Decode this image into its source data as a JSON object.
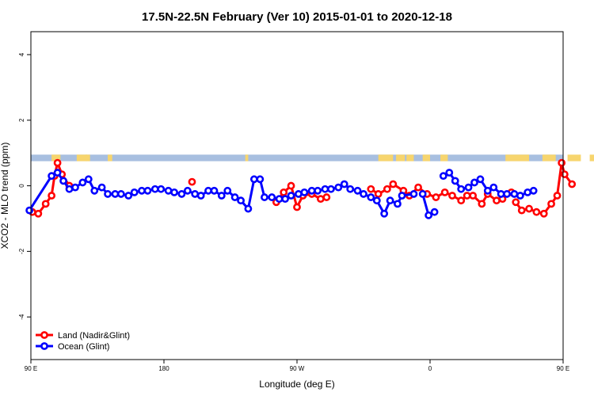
{
  "chart_data": {
    "type": "line",
    "title": "17.5N-22.5N February (Ver 10)   2015-01-01 to 2020-12-18",
    "xlabel": "Longitude (deg E)",
    "ylabel": "XCO2 - MLO trend (ppm)",
    "xlim": [
      90,
      450
    ],
    "ylim": [
      -5.3,
      4.7
    ],
    "x_ticks": [
      {
        "value": 90,
        "label": "90 E"
      },
      {
        "value": 180,
        "label": "180"
      },
      {
        "value": 270,
        "label": "90 W"
      },
      {
        "value": 360,
        "label": "0"
      },
      {
        "value": 450,
        "label": "90 E"
      },
      {
        "value": 540,
        "label": "180"
      }
    ],
    "y_ticks": [
      -4,
      -2,
      0,
      2,
      4
    ],
    "grid": false,
    "legend_position": "bottom-left",
    "land_mask": {
      "y_range": [
        0.75,
        0.95
      ],
      "land_color": "#f7d56e",
      "ocean_color": "#a8bfe0",
      "land_intervals": [
        [
          14,
          20
        ],
        [
          31,
          38
        ],
        [
          37,
          40
        ],
        [
          52,
          55
        ],
        [
          145,
          147
        ],
        [
          235,
          245
        ],
        [
          247,
          253
        ],
        [
          254,
          259
        ],
        [
          265,
          270
        ],
        [
          277,
          282
        ],
        [
          321,
          337
        ],
        [
          346,
          355
        ],
        [
          363,
          372
        ],
        [
          378,
          382
        ],
        [
          399,
          418
        ],
        [
          426,
          427
        ],
        [
          434,
          445
        ]
      ]
    },
    "series": [
      {
        "name": "Land (Nadir&Glint)",
        "color": "#ff0000",
        "segments": [
          [
            [
              91,
              -0.8
            ],
            [
              95,
              -0.85
            ],
            [
              100,
              -0.55
            ],
            [
              104,
              -0.3
            ],
            [
              106,
              0.3
            ],
            [
              108,
              0.7
            ],
            [
              111,
              0.35
            ],
            [
              116,
              0.0
            ]
          ],
          [
            [
              199,
              0.12
            ]
          ],
          [
            [
              256,
              -0.5
            ],
            [
              261,
              -0.2
            ],
            [
              266,
              0.0
            ],
            [
              270,
              -0.65
            ],
            [
              274,
              -0.3
            ],
            [
              280,
              -0.25
            ],
            [
              286,
              -0.4
            ],
            [
              290,
              -0.35
            ]
          ],
          [
            [
              320,
              -0.1
            ],
            [
              325,
              -0.25
            ],
            [
              331,
              -0.1
            ],
            [
              335,
              0.05
            ],
            [
              342,
              -0.15
            ],
            [
              346,
              -0.3
            ],
            [
              352,
              -0.05
            ],
            [
              358,
              -0.25
            ],
            [
              364,
              -0.35
            ],
            [
              370,
              -0.2
            ],
            [
              375,
              -0.3
            ],
            [
              381,
              -0.45
            ],
            [
              385,
              -0.3
            ],
            [
              389,
              -0.3
            ],
            [
              395,
              -0.55
            ],
            [
              399,
              -0.25
            ],
            [
              405,
              -0.45
            ],
            [
              409,
              -0.4
            ],
            [
              415,
              -0.2
            ]
          ],
          [
            [
              418,
              -0.5
            ],
            [
              422,
              -0.75
            ],
            [
              427,
              -0.7
            ],
            [
              432,
              -0.8
            ],
            [
              437,
              -0.85
            ],
            [
              442,
              -0.55
            ],
            [
              446,
              -0.3
            ],
            [
              449,
              0.7
            ],
            [
              451,
              0.35
            ],
            [
              456,
              0.05
            ]
          ]
        ]
      },
      {
        "name": "Ocean (Glint)",
        "color": "#0000ff",
        "segments": [
          [
            [
              89,
              -0.75
            ],
            [
              104,
              0.3
            ],
            [
              108,
              0.4
            ],
            [
              112,
              0.15
            ],
            [
              116,
              -0.1
            ],
            [
              120,
              -0.05
            ],
            [
              125,
              0.1
            ],
            [
              129,
              0.2
            ],
            [
              133,
              -0.15
            ],
            [
              138,
              -0.05
            ],
            [
              142,
              -0.25
            ],
            [
              147,
              -0.25
            ],
            [
              151,
              -0.25
            ],
            [
              156,
              -0.3
            ],
            [
              160,
              -0.2
            ],
            [
              165,
              -0.15
            ],
            [
              169,
              -0.15
            ],
            [
              174,
              -0.1
            ],
            [
              178,
              -0.1
            ],
            [
              183,
              -0.15
            ],
            [
              187,
              -0.2
            ],
            [
              192,
              -0.25
            ],
            [
              196,
              -0.15
            ],
            [
              201,
              -0.25
            ],
            [
              205,
              -0.3
            ],
            [
              210,
              -0.15
            ],
            [
              214,
              -0.15
            ],
            [
              219,
              -0.3
            ],
            [
              223,
              -0.15
            ],
            [
              228,
              -0.35
            ],
            [
              232,
              -0.45
            ],
            [
              237,
              -0.7
            ],
            [
              241,
              0.2
            ],
            [
              245,
              0.2
            ],
            [
              248,
              -0.35
            ],
            [
              253,
              -0.35
            ],
            [
              258,
              -0.4
            ],
            [
              262,
              -0.4
            ],
            [
              266,
              -0.3
            ],
            [
              271,
              -0.25
            ],
            [
              275,
              -0.2
            ],
            [
              280,
              -0.15
            ],
            [
              284,
              -0.15
            ],
            [
              289,
              -0.1
            ],
            [
              293,
              -0.1
            ],
            [
              298,
              -0.05
            ],
            [
              302,
              0.05
            ],
            [
              306,
              -0.1
            ],
            [
              311,
              -0.15
            ],
            [
              315,
              -0.25
            ],
            [
              320,
              -0.35
            ],
            [
              324,
              -0.45
            ],
            [
              329,
              -0.85
            ],
            [
              333,
              -0.45
            ],
            [
              338,
              -0.55
            ],
            [
              341,
              -0.3
            ],
            [
              349,
              -0.25
            ]
          ],
          [
            [
              355,
              -0.25
            ],
            [
              359,
              -0.9
            ],
            [
              363,
              -0.8
            ]
          ],
          [
            [
              369,
              0.3
            ],
            [
              373,
              0.4
            ],
            [
              377,
              0.15
            ],
            [
              381,
              -0.1
            ],
            [
              386,
              -0.05
            ],
            [
              390,
              0.1
            ],
            [
              394,
              0.2
            ],
            [
              399,
              -0.15
            ],
            [
              403,
              -0.05
            ],
            [
              408,
              -0.25
            ],
            [
              412,
              -0.25
            ],
            [
              417,
              -0.25
            ],
            [
              421,
              -0.3
            ],
            [
              426,
              -0.2
            ],
            [
              430,
              -0.15
            ]
          ]
        ]
      }
    ]
  }
}
